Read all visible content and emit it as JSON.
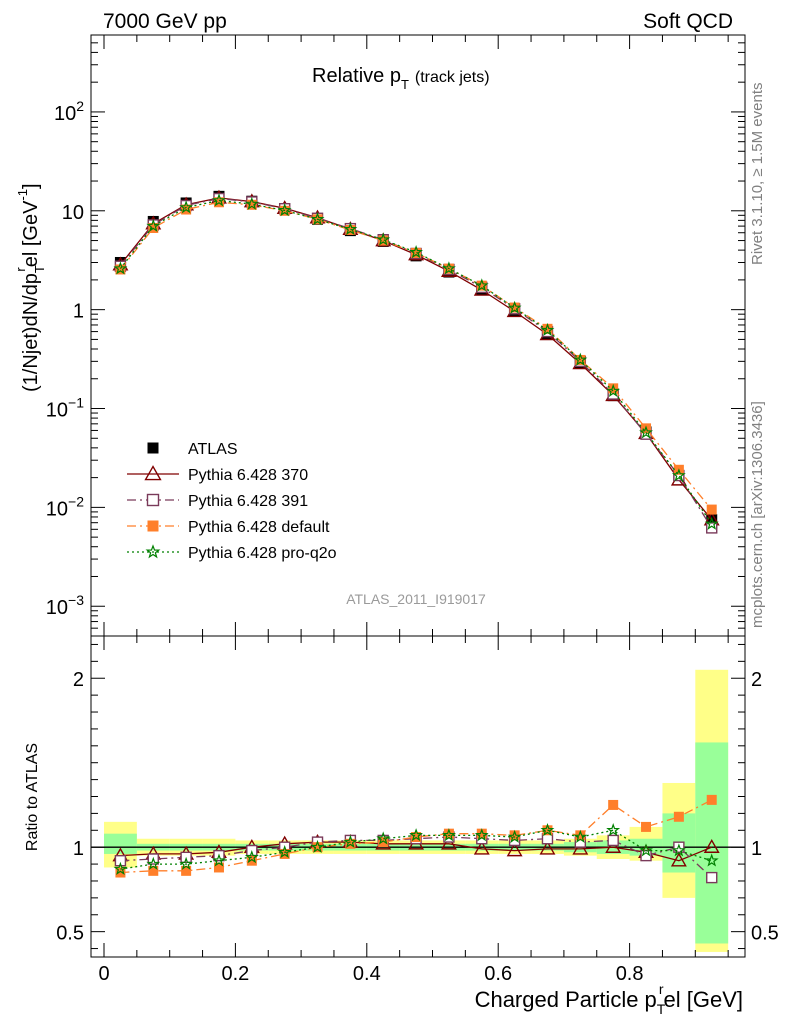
{
  "header": {
    "left": "7000 GeV pp",
    "right": "Soft QCD"
  },
  "side_text": {
    "top": "Rivet 3.1.10, ≥ 1.5M events",
    "bottom": "mcplots.cern.ch [arXiv:1306.3436]"
  },
  "watermark": "ATLAS_2011_I919017",
  "chart_data": [
    {
      "type": "scatter",
      "panel": "main",
      "title": "Relative p_T (track jets)",
      "title_parts": {
        "main": "Relative p",
        "sub": "T",
        "tail": "(track jets)"
      },
      "ylabel": "(1/Njet)dN/dp_T^rel [GeV^-1]",
      "ylabel_parts": {
        "a": "(1/Njet)dN/dp",
        "sub": "T",
        "sup": "r",
        "b": "el [GeV",
        "sup2": "-1",
        "c": "]"
      },
      "yscale": "log",
      "ylim": [
        0.0005,
        600
      ],
      "xlim": [
        -0.025,
        0.975
      ],
      "y_ticklabels": [
        {
          "value": 0.001,
          "base": "10",
          "exp": "−3"
        },
        {
          "value": 0.01,
          "base": "10",
          "exp": "−2"
        },
        {
          "value": 0.1,
          "base": "10",
          "exp": "−1"
        },
        {
          "value": 1,
          "base": "1",
          "exp": ""
        },
        {
          "value": 10,
          "base": "10",
          "exp": ""
        },
        {
          "value": 100,
          "base": "10",
          "exp": "2"
        }
      ],
      "x": [
        0.025,
        0.075,
        0.125,
        0.175,
        0.225,
        0.275,
        0.325,
        0.375,
        0.425,
        0.475,
        0.525,
        0.575,
        0.625,
        0.675,
        0.725,
        0.775,
        0.825,
        0.875,
        0.925
      ],
      "series": [
        {
          "name": "ATLAS",
          "color": "#000000",
          "marker": "filled-square",
          "line": "none",
          "values": [
            3.0,
            7.8,
            12.0,
            14.0,
            12.5,
            10.5,
            8.2,
            6.3,
            4.9,
            3.5,
            2.4,
            1.6,
            0.98,
            0.57,
            0.29,
            0.135,
            0.058,
            0.021,
            0.0075
          ]
        },
        {
          "name": "Pythia 6.428 370",
          "color": "#800000",
          "marker": "open-triangle",
          "line": "solid",
          "values": [
            2.85,
            7.4,
            11.5,
            13.5,
            12.4,
            10.6,
            8.5,
            6.5,
            5.0,
            3.6,
            2.45,
            1.58,
            0.96,
            0.56,
            0.285,
            0.136,
            0.056,
            0.019,
            0.0075
          ]
        },
        {
          "name": "Pythia 6.428 391",
          "color": "#7a3a5a",
          "marker": "open-square",
          "line": "dashdot",
          "values": [
            2.75,
            7.2,
            11.3,
            13.3,
            12.3,
            10.5,
            8.4,
            6.6,
            5.1,
            3.7,
            2.55,
            1.68,
            1.02,
            0.6,
            0.3,
            0.14,
            0.055,
            0.021,
            0.0062
          ]
        },
        {
          "name": "Pythia 6.428 default",
          "color": "#ff7f2a",
          "marker": "filled-square",
          "line": "dashdot",
          "values": [
            2.55,
            6.7,
            10.3,
            12.2,
            11.5,
            10.0,
            8.2,
            6.4,
            5.0,
            3.75,
            2.6,
            1.75,
            1.05,
            0.64,
            0.31,
            0.16,
            0.063,
            0.024,
            0.0095
          ]
        },
        {
          "name": "Pythia 6.428 pro-q2o",
          "color": "#008000",
          "marker": "open-star",
          "line": "dotted",
          "values": [
            2.6,
            7.0,
            10.8,
            12.7,
            11.7,
            10.1,
            8.2,
            6.5,
            5.1,
            3.8,
            2.6,
            1.75,
            1.04,
            0.62,
            0.31,
            0.15,
            0.057,
            0.021,
            0.0068
          ]
        }
      ],
      "legend": "lower-left"
    },
    {
      "type": "scatter",
      "panel": "ratio",
      "ylabel": "Ratio to ATLAS",
      "xlabel": "Charged Particle p_T^rel [GeV]",
      "xlabel_parts": {
        "a": "Charged Particle p",
        "sub": "T",
        "sup": "r",
        "b": "el [GeV]"
      },
      "ylim": [
        0.35,
        2.25
      ],
      "xlim": [
        -0.025,
        0.975
      ],
      "y_ticklabels": [
        {
          "value": 0.5,
          "label": "0.5"
        },
        {
          "value": 1,
          "label": "1"
        },
        {
          "value": 2,
          "label": "2"
        }
      ],
      "x_ticklabels": [
        {
          "value": 0,
          "label": "0"
        },
        {
          "value": 0.2,
          "label": "0.2"
        },
        {
          "value": 0.4,
          "label": "0.4"
        },
        {
          "value": 0.6,
          "label": "0.6"
        },
        {
          "value": 0.8,
          "label": "0.8"
        }
      ],
      "x": [
        0.025,
        0.075,
        0.125,
        0.175,
        0.225,
        0.275,
        0.325,
        0.375,
        0.425,
        0.475,
        0.525,
        0.575,
        0.625,
        0.675,
        0.725,
        0.775,
        0.825,
        0.875,
        0.925
      ],
      "bands": {
        "yellow": [
          [
            0.88,
            1.15
          ],
          [
            0.95,
            1.05
          ],
          [
            0.95,
            1.05
          ],
          [
            0.95,
            1.05
          ],
          [
            0.96,
            1.04
          ],
          [
            0.96,
            1.04
          ],
          [
            0.96,
            1.04
          ],
          [
            0.96,
            1.04
          ],
          [
            0.96,
            1.04
          ],
          [
            0.96,
            1.04
          ],
          [
            0.96,
            1.04
          ],
          [
            0.96,
            1.04
          ],
          [
            0.96,
            1.04
          ],
          [
            0.96,
            1.04
          ],
          [
            0.95,
            1.05
          ],
          [
            0.93,
            1.07
          ],
          [
            0.92,
            1.12
          ],
          [
            0.7,
            1.38
          ],
          [
            0.38,
            2.05
          ]
        ],
        "green": [
          [
            0.96,
            1.08
          ],
          [
            0.98,
            1.02
          ],
          [
            0.98,
            1.02
          ],
          [
            0.98,
            1.02
          ],
          [
            0.98,
            1.02
          ],
          [
            0.98,
            1.02
          ],
          [
            0.98,
            1.02
          ],
          [
            0.98,
            1.02
          ],
          [
            0.98,
            1.02
          ],
          [
            0.98,
            1.02
          ],
          [
            0.98,
            1.02
          ],
          [
            0.98,
            1.02
          ],
          [
            0.98,
            1.02
          ],
          [
            0.98,
            1.02
          ],
          [
            0.97,
            1.03
          ],
          [
            0.96,
            1.04
          ],
          [
            0.95,
            1.05
          ],
          [
            0.85,
            1.2
          ],
          [
            0.43,
            1.62
          ]
        ]
      },
      "series": [
        {
          "name": "Pythia 6.428 370",
          "values": [
            0.95,
            0.96,
            0.96,
            0.97,
            1.0,
            1.02,
            1.03,
            1.03,
            1.02,
            1.02,
            1.02,
            0.99,
            0.98,
            0.99,
            0.99,
            1.0,
            0.97,
            0.92,
            1.0
          ]
        },
        {
          "name": "Pythia 6.428 391",
          "values": [
            0.92,
            0.93,
            0.94,
            0.95,
            0.98,
            1.0,
            1.03,
            1.04,
            1.04,
            1.05,
            1.06,
            1.05,
            1.04,
            1.05,
            1.03,
            1.04,
            0.95,
            1.0,
            0.82
          ]
        },
        {
          "name": "Pythia 6.428 default",
          "values": [
            0.85,
            0.86,
            0.86,
            0.88,
            0.92,
            0.96,
            1.0,
            1.02,
            1.03,
            1.06,
            1.08,
            1.08,
            1.07,
            1.1,
            1.07,
            1.25,
            1.12,
            1.18,
            1.28
          ]
        },
        {
          "name": "Pythia 6.428 pro-q2o",
          "values": [
            0.87,
            0.9,
            0.9,
            0.92,
            0.94,
            0.97,
            1.0,
            1.03,
            1.05,
            1.07,
            1.07,
            1.07,
            1.06,
            1.1,
            1.06,
            1.1,
            0.98,
            0.98,
            0.92
          ]
        }
      ]
    }
  ],
  "legend_items": [
    "ATLAS",
    "Pythia 6.428 370",
    "Pythia 6.428 391",
    "Pythia 6.428 default",
    "Pythia 6.428 pro-q2o"
  ]
}
